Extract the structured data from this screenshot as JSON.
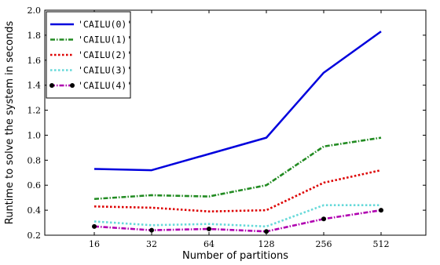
{
  "chart_data": {
    "type": "line",
    "xlabel": "Number of partitions",
    "ylabel": "Runtime to solve the system in seconds",
    "categories": [
      "16",
      "32",
      "64",
      "128",
      "256",
      "512"
    ],
    "ylim": [
      0.2,
      2.0
    ],
    "yticks": [
      "0.2",
      "0.4",
      "0.6",
      "0.8",
      "1.0",
      "1.2",
      "1.4",
      "1.6",
      "1.8",
      "2.0"
    ],
    "legend_position": "top-left",
    "grid": false,
    "series": [
      {
        "name": "'CAILU(0)'",
        "values": [
          0.73,
          0.72,
          0.85,
          0.98,
          1.5,
          1.83
        ],
        "color": "#0000dd",
        "style": "solid"
      },
      {
        "name": "'CAILU(1)'",
        "values": [
          0.49,
          0.52,
          0.51,
          0.6,
          0.91,
          0.98
        ],
        "color": "#228b22",
        "style": "dashdot"
      },
      {
        "name": "'CAILU(2)'",
        "values": [
          0.43,
          0.42,
          0.39,
          0.4,
          0.62,
          0.72
        ],
        "color": "#dd0000",
        "style": "dotted"
      },
      {
        "name": "'CAILU(3)'",
        "values": [
          0.31,
          0.28,
          0.29,
          0.27,
          0.44,
          0.44
        ],
        "color": "#66d9d9",
        "style": "dotted"
      },
      {
        "name": "'CAILU(4)'",
        "values": [
          0.27,
          0.24,
          0.25,
          0.23,
          0.33,
          0.4
        ],
        "color": "#b000b0",
        "style": "dashdot",
        "marker": "circle"
      }
    ]
  }
}
